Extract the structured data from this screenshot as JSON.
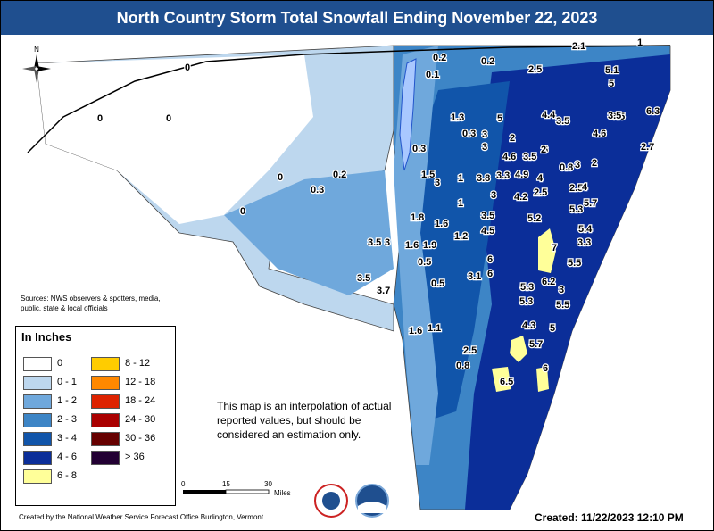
{
  "title": "North Country Storm Total Snowfall Ending November 22, 2023",
  "compass": {
    "north_label": "N"
  },
  "sources_text": "Sources: NWS observers & spotters, media, public, state & local officials",
  "legend": {
    "title": "In Inches",
    "items": [
      {
        "label": "0",
        "color": "#ffffff"
      },
      {
        "label": "0 - 1",
        "color": "#bdd7ee"
      },
      {
        "label": "1 - 2",
        "color": "#6fa8dc"
      },
      {
        "label": "2 - 3",
        "color": "#3d85c6"
      },
      {
        "label": "3 - 4",
        "color": "#1155aa"
      },
      {
        "label": "4 - 6",
        "color": "#0b2e99"
      },
      {
        "label": "6 - 8",
        "color": "#ffff99"
      },
      {
        "label": "8 - 12",
        "color": "#ffcc00"
      },
      {
        "label": "12 - 18",
        "color": "#ff8800"
      },
      {
        "label": "18 - 24",
        "color": "#dd2200"
      },
      {
        "label": "24 - 30",
        "color": "#aa0000"
      },
      {
        "label": "30 - 36",
        "color": "#660000"
      },
      {
        "label": "> 36",
        "color": "#220033"
      }
    ]
  },
  "note": "This map is an interpolation of actual reported values, but should be considered an estimation only.",
  "scale": {
    "ticks": [
      "0",
      "15",
      "30"
    ],
    "unit": "Miles"
  },
  "credit": "Created by the National Weather Service Forecast Office Burlington, Vermont",
  "created": "Created: 11/22/2023 12:10 PM",
  "observations": [
    "0",
    "0",
    "0",
    "0",
    "0",
    "0.3",
    "0.2",
    "0.2",
    "0.2",
    "0.1",
    "2.1",
    "1",
    "2.5",
    "5.1",
    "5",
    "1.3",
    "5",
    "4.4",
    "3.5",
    "3.5",
    "3.5",
    "6.3",
    "0.3",
    "3",
    "2",
    "4.6",
    "0.3",
    "3",
    "4.6",
    "3.5",
    "6",
    "2",
    "2.7",
    "0.8",
    "3",
    "2",
    "1.5",
    "3",
    "1",
    "3.8",
    "3.3",
    "4.9",
    "4",
    "2.5",
    "4",
    "3",
    "4.2",
    "5.7",
    "2.5",
    "1",
    "5.3",
    "1.8",
    "1.6",
    "3.5",
    "5.2",
    "4.5",
    "5.4",
    "1.2",
    "3.5",
    "3",
    "1.6",
    "1.9",
    "7",
    "3.3",
    "6",
    "0.5",
    "5.5",
    "3.5",
    "3.7",
    "0.5",
    "3.1",
    "6",
    "6.2",
    "5.3",
    "3",
    "5.3",
    "5.5",
    "1.6",
    "1.1",
    "4.3",
    "5",
    "5.7",
    "2.5",
    "0.8",
    "6",
    "6.5"
  ]
}
